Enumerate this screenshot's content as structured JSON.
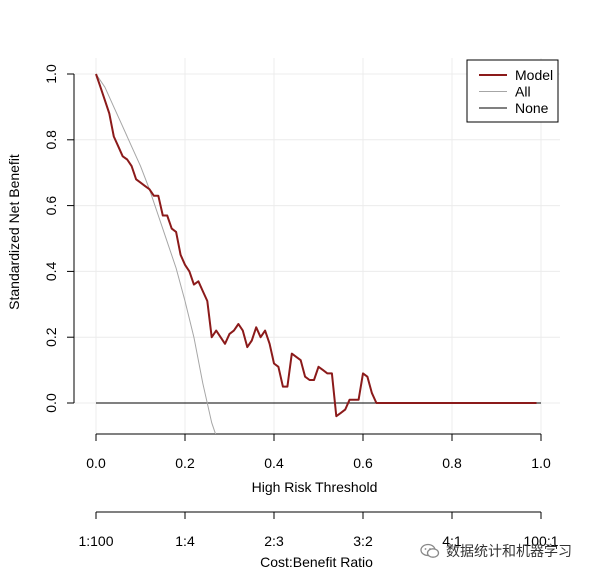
{
  "chart_data": {
    "type": "line",
    "title": "",
    "xlabel": "High Risk Threshold",
    "ylabel": "Standardized Net Benefit",
    "xlim": [
      0,
      1
    ],
    "ylim": [
      -0.1,
      1
    ],
    "x_ticks": [
      "0.0",
      "0.2",
      "0.4",
      "0.6",
      "0.8",
      "1.0"
    ],
    "y_ticks": [
      "0.0",
      "0.2",
      "0.4",
      "0.6",
      "0.8",
      "1.0"
    ],
    "x_tick_values": [
      0,
      0.2,
      0.4,
      0.6,
      0.8,
      1.0
    ],
    "y_tick_values": [
      0,
      0.2,
      0.4,
      0.6,
      0.8,
      1.0
    ],
    "secondary_axis": {
      "label": "Cost:Benefit Ratio",
      "tick_labels": [
        "1:100",
        "1:4",
        "2:3",
        "3:2",
        "4:1",
        "100:1"
      ],
      "tick_values": [
        0,
        0.2,
        0.4,
        0.6,
        0.8,
        1.0
      ]
    },
    "grid": true,
    "legend_position": "top-right",
    "series": [
      {
        "name": "Model",
        "color": "#8b1a1a",
        "x": [
          0.0,
          0.01,
          0.02,
          0.03,
          0.04,
          0.05,
          0.06,
          0.07,
          0.08,
          0.09,
          0.1,
          0.11,
          0.12,
          0.13,
          0.14,
          0.15,
          0.16,
          0.17,
          0.18,
          0.19,
          0.2,
          0.21,
          0.22,
          0.23,
          0.24,
          0.25,
          0.26,
          0.27,
          0.28,
          0.29,
          0.3,
          0.31,
          0.32,
          0.33,
          0.34,
          0.35,
          0.36,
          0.37,
          0.38,
          0.39,
          0.4,
          0.41,
          0.42,
          0.43,
          0.44,
          0.45,
          0.46,
          0.47,
          0.48,
          0.49,
          0.5,
          0.51,
          0.52,
          0.53,
          0.54,
          0.55,
          0.56,
          0.57,
          0.58,
          0.59,
          0.6,
          0.61,
          0.62,
          0.63,
          0.64,
          0.65,
          0.66,
          0.67,
          0.7,
          0.8,
          0.9,
          0.99
        ],
        "y": [
          1.0,
          0.96,
          0.92,
          0.88,
          0.81,
          0.78,
          0.75,
          0.74,
          0.72,
          0.68,
          0.67,
          0.66,
          0.65,
          0.63,
          0.63,
          0.57,
          0.57,
          0.53,
          0.52,
          0.45,
          0.42,
          0.4,
          0.36,
          0.37,
          0.34,
          0.31,
          0.2,
          0.22,
          0.2,
          0.18,
          0.21,
          0.22,
          0.24,
          0.22,
          0.17,
          0.19,
          0.23,
          0.2,
          0.22,
          0.18,
          0.12,
          0.11,
          0.05,
          0.05,
          0.15,
          0.14,
          0.13,
          0.08,
          0.07,
          0.07,
          0.11,
          0.1,
          0.09,
          0.09,
          -0.04,
          -0.03,
          -0.02,
          0.01,
          0.01,
          0.01,
          0.09,
          0.08,
          0.03,
          0.0,
          0.0,
          0.0,
          0.0,
          0.0,
          0.0,
          0.0,
          0.0,
          0.0
        ]
      },
      {
        "name": "All",
        "color": "#a6a6a6",
        "x": [
          0.0,
          0.02,
          0.04,
          0.06,
          0.08,
          0.1,
          0.12,
          0.14,
          0.16,
          0.18,
          0.2,
          0.22,
          0.24,
          0.26,
          0.27
        ],
        "y": [
          1.0,
          0.96,
          0.9,
          0.84,
          0.78,
          0.72,
          0.65,
          0.57,
          0.49,
          0.41,
          0.31,
          0.2,
          0.06,
          -0.06,
          -0.1
        ]
      },
      {
        "name": "None",
        "color": "#000000",
        "x": [
          0.0,
          1.0
        ],
        "y": [
          0.0,
          0.0
        ]
      }
    ]
  },
  "watermark": {
    "text": "数据统计和机器学习",
    "icon": "wechat-icon"
  }
}
